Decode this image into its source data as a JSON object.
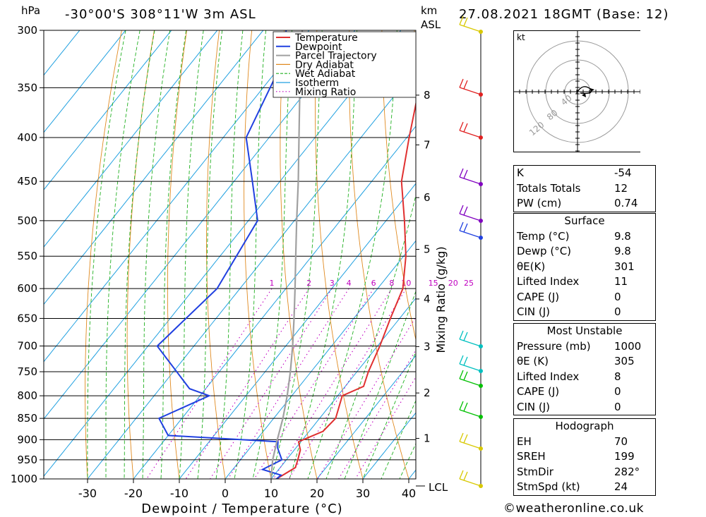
{
  "header": {
    "location": "-30°00'S 308°11'W 3m ASL",
    "datetime": "27.08.2021 18GMT (Base: 12)",
    "unit_left": "hPa",
    "unit_right_1": "km",
    "unit_right_2": "ASL"
  },
  "legend": [
    "Temperature",
    "Dewpoint",
    "Parcel Trajectory",
    "Dry Adiabat",
    "Wet Adiabat",
    "Isotherm",
    "Mixing Ratio"
  ],
  "colors": {
    "temperature": "#e03030",
    "dewpoint": "#2040e0",
    "parcel": "#a0a0a0",
    "dry_adiabat": "#e08a20",
    "wet_adiabat": "#20b020",
    "isotherm": "#20a0e0",
    "mixing_ratio": "#c000c0"
  },
  "chart_data": {
    "type": "line",
    "xlabel": "Dewpoint / Temperature (°C)",
    "ylabel": "Mixing Ratio (g/kg)",
    "pressure_levels": [
      300,
      350,
      400,
      450,
      500,
      550,
      600,
      650,
      700,
      750,
      800,
      850,
      900,
      950,
      1000
    ],
    "x_ticks": [
      -30,
      -20,
      -10,
      0,
      10,
      20,
      30,
      40
    ],
    "height_ticks_km": [
      "8",
      "7",
      "6",
      "5",
      "4",
      "3",
      "2",
      "1"
    ],
    "lcl_label": "LCL",
    "mixing_ratio_labels": [
      "1",
      "2",
      "3",
      "4",
      "6",
      "8",
      "10",
      "15",
      "20",
      "25"
    ],
    "series": [
      {
        "name": "Temperature",
        "points": [
          [
            1005,
            11.5
          ],
          [
            1000,
            11.2
          ],
          [
            970,
            13.3
          ],
          [
            950,
            12.5
          ],
          [
            925,
            11.3
          ],
          [
            905,
            9.5
          ],
          [
            900,
            10.2
          ],
          [
            880,
            13.0
          ],
          [
            850,
            13.5
          ],
          [
            800,
            11.0
          ],
          [
            780,
            14.0
          ],
          [
            750,
            12.5
          ],
          [
            700,
            10.5
          ],
          [
            650,
            8.0
          ],
          [
            600,
            5.5
          ],
          [
            550,
            0.5
          ],
          [
            500,
            -6.0
          ],
          [
            450,
            -13.5
          ],
          [
            400,
            -19.5
          ],
          [
            350,
            -26.0
          ],
          [
            320,
            -30.0
          ],
          [
            300,
            -31.0
          ]
        ]
      },
      {
        "name": "Dewpoint",
        "points": [
          [
            1005,
            11.0
          ],
          [
            990,
            11.5
          ],
          [
            975,
            6.5
          ],
          [
            950,
            9.0
          ],
          [
            920,
            6.0
          ],
          [
            905,
            5.0
          ],
          [
            890,
            -20.0
          ],
          [
            850,
            -25.0
          ],
          [
            800,
            -18.0
          ],
          [
            785,
            -23.5
          ],
          [
            700,
            -38.0
          ],
          [
            600,
            -35.0
          ],
          [
            500,
            -38.0
          ],
          [
            450,
            -46.0
          ],
          [
            400,
            -55.0
          ],
          [
            330,
            -60.0
          ],
          [
            300,
            -65.0
          ]
        ]
      },
      {
        "name": "Parcel Trajectory",
        "points": [
          [
            1000,
            10.0
          ],
          [
            950,
            7.0
          ],
          [
            900,
            4.5
          ],
          [
            850,
            2.0
          ],
          [
            800,
            -1.0
          ],
          [
            750,
            -4.5
          ],
          [
            700,
            -8.5
          ],
          [
            650,
            -13.0
          ],
          [
            600,
            -18.0
          ],
          [
            550,
            -23.5
          ],
          [
            500,
            -29.5
          ],
          [
            450,
            -36.0
          ],
          [
            400,
            -43.5
          ],
          [
            350,
            -52.0
          ],
          [
            300,
            -61.5
          ]
        ]
      }
    ]
  },
  "hodograph": {
    "unit": "kt",
    "ring_labels": [
      "40",
      "80",
      "120"
    ]
  },
  "indices": [
    {
      "label": "K",
      "value": "-54"
    },
    {
      "label": "Totals Totals",
      "value": "12"
    },
    {
      "label": "PW (cm)",
      "value": "0.74"
    }
  ],
  "surface": {
    "title": "Surface",
    "rows": [
      {
        "label": "Temp (°C)",
        "value": "9.8"
      },
      {
        "label": "Dewp (°C)",
        "value": "9.8"
      },
      {
        "label": "θE(K)",
        "value": "301"
      },
      {
        "label": "Lifted Index",
        "value": "11"
      },
      {
        "label": "CAPE (J)",
        "value": "0"
      },
      {
        "label": "CIN (J)",
        "value": "0"
      }
    ]
  },
  "most_unstable": {
    "title": "Most Unstable",
    "rows": [
      {
        "label": "Pressure (mb)",
        "value": "1000"
      },
      {
        "label": "θE (K)",
        "value": "305"
      },
      {
        "label": "Lifted Index",
        "value": "8"
      },
      {
        "label": "CAPE (J)",
        "value": "0"
      },
      {
        "label": "CIN (J)",
        "value": "0"
      }
    ]
  },
  "hodograph_stats": {
    "title": "Hodograph",
    "rows": [
      {
        "label": "EH",
        "value": "70"
      },
      {
        "label": "SREH",
        "value": "199"
      },
      {
        "label": "StmDir",
        "value": "282°"
      },
      {
        "label": "StmSpd (kt)",
        "value": "24"
      }
    ]
  },
  "footer": "©weatheronline.co.uk"
}
